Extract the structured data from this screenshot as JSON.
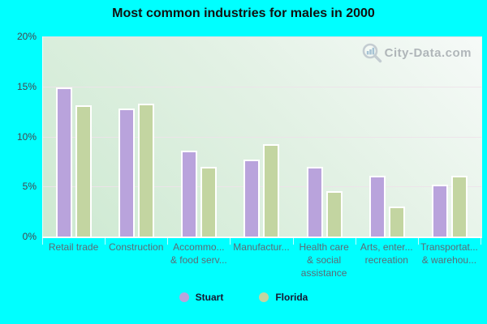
{
  "title": "Most common industries for males in 2000",
  "watermark": {
    "text": "City-Data.com"
  },
  "colors": {
    "background": "#00ffff",
    "stuart_bar": "#b9a3dc",
    "florida_bar": "#c3d5a1",
    "bar_border": "#ffffff",
    "plot_gradient_bottom_left": "#cde9d1",
    "plot_gradient_top_right": "#f6faf8",
    "gridline": "#eee2ea",
    "y_label_text": "#45454d",
    "x_label_text": "#5b6a75",
    "title_text": "#111111",
    "legend_text": "#161630",
    "watermark_text": "#9aa0a6"
  },
  "y_axis": {
    "tick_labels": [
      "20%",
      "15%",
      "10%",
      "5%",
      "0%"
    ],
    "max_percent": 20
  },
  "chart_data": {
    "type": "bar",
    "title": "Most common industries for males in 2000",
    "categories": [
      "Retail trade",
      "Construction",
      "Accommodation & food services",
      "Manufacturing",
      "Health care & social assistance",
      "Arts, entertainment, recreation",
      "Transportation & warehousing"
    ],
    "category_display_lines": [
      [
        "Retail trade"
      ],
      [
        "Construction"
      ],
      [
        "Accommo...",
        "& food serv..."
      ],
      [
        "Manufactur..."
      ],
      [
        "Health care",
        "& social",
        "assistance"
      ],
      [
        "Arts, enter...",
        "recreation"
      ],
      [
        "Transportat...",
        "& warehou..."
      ]
    ],
    "series": [
      {
        "name": "Stuart",
        "color": "#b9a3dc",
        "values": [
          14.9,
          12.8,
          8.6,
          7.7,
          7.0,
          6.1,
          5.2
        ]
      },
      {
        "name": "Florida",
        "color": "#c3d5a1",
        "values": [
          13.1,
          13.3,
          7.0,
          9.2,
          4.5,
          3.0,
          6.1
        ]
      }
    ],
    "xlabel": "",
    "ylabel": "",
    "ylim": [
      0,
      20
    ],
    "grid": true,
    "legend_position": "bottom"
  },
  "legend": {
    "items": [
      {
        "label": "Stuart",
        "color": "#b9a3dc"
      },
      {
        "label": "Florida",
        "color": "#c3d5a1"
      }
    ]
  }
}
